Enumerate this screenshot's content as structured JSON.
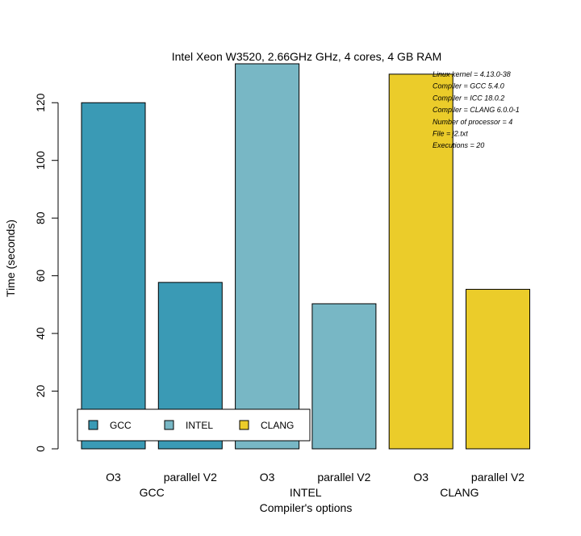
{
  "chart_data": {
    "type": "bar",
    "title": "Intel Xeon W3520, 2.66GHz GHz, 4 cores, 4 GB RAM",
    "xlabel": "Compiler's options",
    "ylabel": "Time (seconds)",
    "ylim": [
      0,
      130
    ],
    "yticks": [
      0,
      20,
      40,
      60,
      80,
      100,
      120
    ],
    "grid": false,
    "groups": [
      "GCC",
      "INTEL",
      "CLANG"
    ],
    "categories": [
      "O3",
      "parallel V2",
      "O3",
      "parallel V2",
      "O3",
      "parallel V2"
    ],
    "bars": [
      {
        "group": "GCC",
        "option": "O3",
        "value": 120,
        "color": "#3A9AB5"
      },
      {
        "group": "GCC",
        "option": "parallel V2",
        "value": 57.7,
        "color": "#3A9AB5"
      },
      {
        "group": "INTEL",
        "option": "O3",
        "value": 133.5,
        "color": "#78B7C5"
      },
      {
        "group": "INTEL",
        "option": "parallel V2",
        "value": 50.3,
        "color": "#78B7C5"
      },
      {
        "group": "CLANG",
        "option": "O3",
        "value": 129.9,
        "color": "#EBCC2A"
      },
      {
        "group": "CLANG",
        "option": "parallel V2",
        "value": 55.3,
        "color": "#EBCC2A"
      }
    ],
    "legend": {
      "placement": "bottom-left",
      "entries": [
        {
          "name": "GCC",
          "color": "#3A9AB5"
        },
        {
          "name": "INTEL",
          "color": "#78B7C5"
        },
        {
          "name": "CLANG",
          "color": "#EBCC2A"
        }
      ]
    },
    "annotations": [
      "Linux kernel = 4.13.0-38",
      "Compiler = GCC 5.4.0",
      "Compiler = ICC 18.0.2",
      "Compiler = CLANG 6.0.0-1",
      "Number of processor = 4",
      "File = j2.txt",
      "Executions = 20"
    ]
  }
}
